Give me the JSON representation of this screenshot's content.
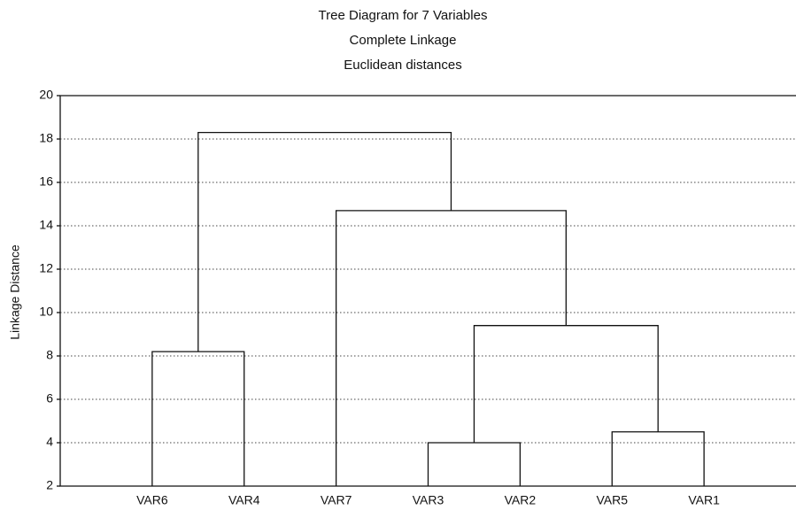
{
  "chart_data": {
    "type": "dendrogram",
    "title": "Tree Diagram for 7 Variables",
    "subtitle": [
      "Complete Linkage",
      "Euclidean distances"
    ],
    "y_label": "Linkage Distance",
    "leaves": [
      "VAR6",
      "VAR4",
      "VAR7",
      "VAR3",
      "VAR2",
      "VAR5",
      "VAR1"
    ],
    "merges": [
      {
        "left": 3,
        "right": 4,
        "height": 4.0
      },
      {
        "left": 5,
        "right": 6,
        "height": 4.5
      },
      {
        "left": 0,
        "right": 1,
        "height": 8.2
      },
      {
        "left": 7,
        "right": 8,
        "height": 9.4
      },
      {
        "left": 2,
        "right": 10,
        "height": 14.7
      },
      {
        "left": 9,
        "right": 11,
        "height": 18.3
      }
    ],
    "ylim": [
      2,
      20
    ],
    "yticks": [
      2,
      4,
      6,
      8,
      10,
      12,
      14,
      16,
      18,
      20
    ],
    "grid": true,
    "color": "#111111"
  }
}
